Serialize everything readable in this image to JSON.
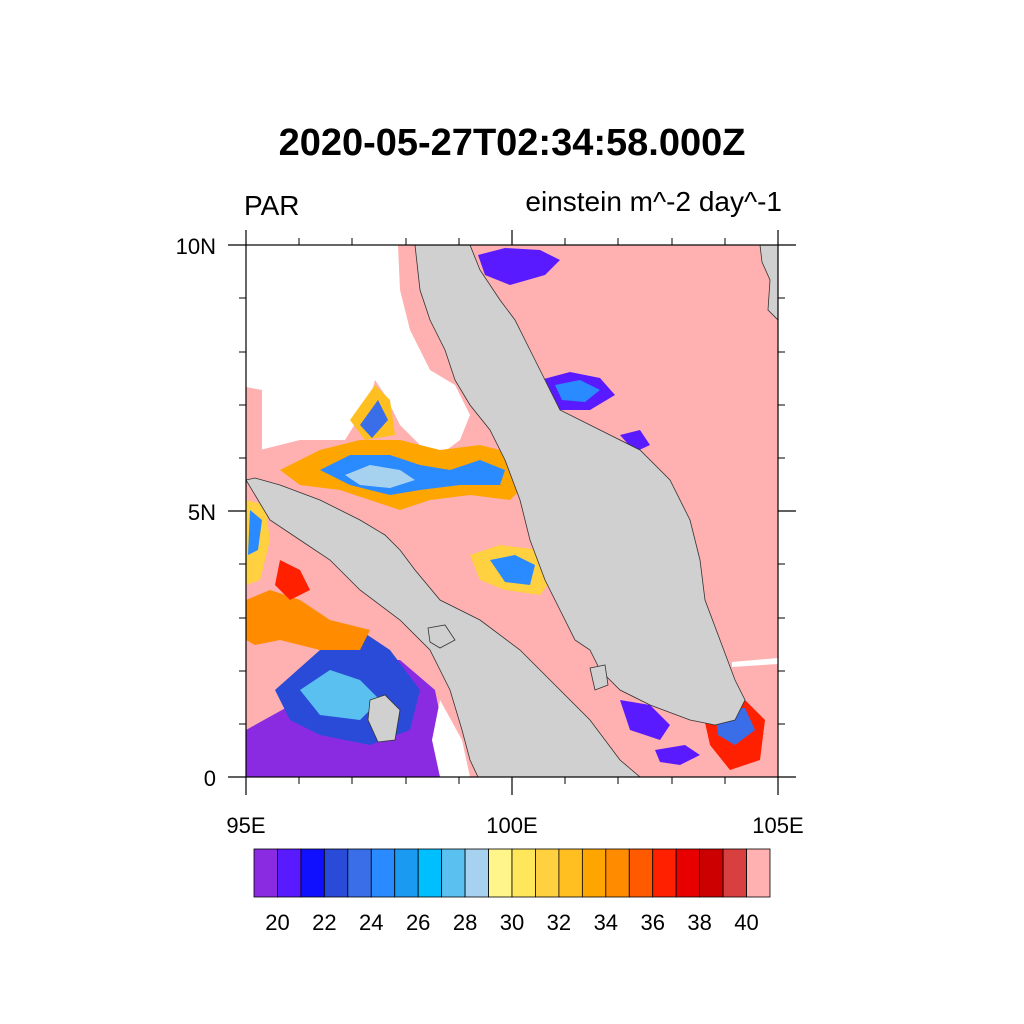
{
  "title": "2020-05-27T02:34:58.000Z",
  "variable": "PAR",
  "units": "einstein m^-2 day^-1",
  "map": {
    "lon_range": [
      95,
      105
    ],
    "lat_range": [
      0,
      10
    ],
    "lon_ticks": [
      "95E",
      "100E",
      "105E"
    ],
    "lat_ticks": [
      "10N",
      "5N",
      "0"
    ],
    "land_color": "#d0d0d0",
    "missing_color": "#ffffff"
  },
  "colorbar": {
    "colors": [
      "#8a2be2",
      "#5a1aff",
      "#1010ff",
      "#2a4ad8",
      "#3a6ee8",
      "#2a8aff",
      "#1a9af0",
      "#00bfff",
      "#5ac0f0",
      "#a6d2f0",
      "#fff58a",
      "#ffe65a",
      "#ffd040",
      "#ffbf20",
      "#ffa500",
      "#ff8c00",
      "#ff5a00",
      "#ff2000",
      "#e80000",
      "#cc0000",
      "#d84040",
      "#ffb0b0"
    ],
    "labels": [
      "20",
      "22",
      "24",
      "26",
      "28",
      "30",
      "32",
      "34",
      "36",
      "38",
      "40"
    ]
  }
}
